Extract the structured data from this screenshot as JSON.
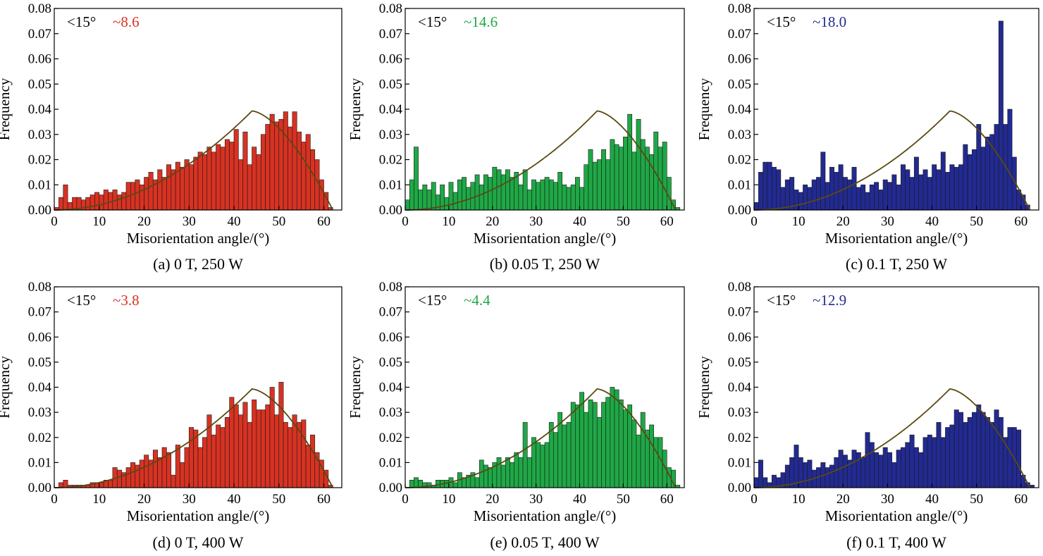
{
  "colors": {
    "red": "#d83222",
    "green": "#1fa846",
    "blue": "#222a92",
    "curve": "#5a4a10"
  },
  "chart_data": [
    {
      "type": "bar",
      "panel": "a",
      "caption": "(a) 0 T, 250 W",
      "xlabel": "Misorientation angle/(°)",
      "ylabel": "Frequency",
      "xlim": [
        0,
        64
      ],
      "ylim": [
        0,
        0.08
      ],
      "xticks": [
        "0",
        "10",
        "20",
        "30",
        "40",
        "50",
        "60"
      ],
      "yticks": [
        "0.00",
        "0.01",
        "0.02",
        "0.03",
        "0.04",
        "0.05",
        "0.06",
        "0.07",
        "0.08"
      ],
      "annotation_label": "<15°",
      "annotation_value": "~8.6",
      "color": "red",
      "series": [
        {
          "bin_width": 1,
          "x": [
            0,
            1,
            2,
            3,
            4,
            5,
            6,
            7,
            8,
            9,
            10,
            11,
            12,
            13,
            14,
            15,
            16,
            17,
            18,
            19,
            20,
            21,
            22,
            23,
            24,
            25,
            26,
            27,
            28,
            29,
            30,
            31,
            32,
            33,
            34,
            35,
            36,
            37,
            38,
            39,
            40,
            41,
            42,
            43,
            44,
            45,
            46,
            47,
            48,
            49,
            50,
            51,
            52,
            53,
            54,
            55,
            56,
            57,
            58,
            59,
            60,
            61,
            62
          ],
          "values": [
            0.001,
            0.005,
            0.01,
            0.003,
            0.005,
            0.005,
            0.004,
            0.005,
            0.006,
            0.007,
            0.006,
            0.008,
            0.007,
            0.008,
            0.006,
            0.007,
            0.011,
            0.011,
            0.012,
            0.01,
            0.013,
            0.015,
            0.012,
            0.016,
            0.013,
            0.018,
            0.016,
            0.019,
            0.017,
            0.02,
            0.018,
            0.021,
            0.023,
            0.022,
            0.025,
            0.023,
            0.026,
            0.025,
            0.028,
            0.027,
            0.032,
            0.02,
            0.031,
            0.018,
            0.025,
            0.022,
            0.03,
            0.034,
            0.038,
            0.035,
            0.036,
            0.039,
            0.033,
            0.039,
            0.031,
            0.027,
            0.03,
            0.024,
            0.02,
            0.012,
            0.007,
            0.001,
            0
          ]
        }
      ]
    },
    {
      "type": "bar",
      "panel": "b",
      "caption": "(b) 0.05 T, 250 W",
      "xlabel": "Misorientation angle/(°)",
      "ylabel": "Frequency",
      "xlim": [
        0,
        64
      ],
      "ylim": [
        0,
        0.08
      ],
      "xticks": [
        "0",
        "10",
        "20",
        "30",
        "40",
        "50",
        "60"
      ],
      "yticks": [
        "0.00",
        "0.01",
        "0.02",
        "0.03",
        "0.04",
        "0.05",
        "0.06",
        "0.07",
        "0.08"
      ],
      "annotation_label": "<15°",
      "annotation_value": "~14.6",
      "color": "green",
      "series": [
        {
          "bin_width": 1,
          "x": [
            0,
            1,
            2,
            3,
            4,
            5,
            6,
            7,
            8,
            9,
            10,
            11,
            12,
            13,
            14,
            15,
            16,
            17,
            18,
            19,
            20,
            21,
            22,
            23,
            24,
            25,
            26,
            27,
            28,
            29,
            30,
            31,
            32,
            33,
            34,
            35,
            36,
            37,
            38,
            39,
            40,
            41,
            42,
            43,
            44,
            45,
            46,
            47,
            48,
            49,
            50,
            51,
            52,
            53,
            54,
            55,
            56,
            57,
            58,
            59,
            60,
            61,
            62
          ],
          "values": [
            0.004,
            0.012,
            0.025,
            0.008,
            0.01,
            0.008,
            0.011,
            0.006,
            0.01,
            0.005,
            0.011,
            0.007,
            0.012,
            0.013,
            0.009,
            0.011,
            0.014,
            0.01,
            0.014,
            0.013,
            0.017,
            0.016,
            0.014,
            0.016,
            0.013,
            0.015,
            0.01,
            0.016,
            0.008,
            0.012,
            0.011,
            0.012,
            0.013,
            0.012,
            0.011,
            0.015,
            0.01,
            0.009,
            0.01,
            0.013,
            0.009,
            0.018,
            0.024,
            0.019,
            0.02,
            0.024,
            0.02,
            0.028,
            0.026,
            0.025,
            0.029,
            0.038,
            0.023,
            0.036,
            0.028,
            0.025,
            0.022,
            0.031,
            0.025,
            0.027,
            0.013,
            0.004,
            0.001
          ]
        }
      ]
    },
    {
      "type": "bar",
      "panel": "c",
      "caption": "(c) 0.1 T, 250 W",
      "xlabel": "Misorientation angle/(°)",
      "ylabel": "Frequency",
      "xlim": [
        0,
        64
      ],
      "ylim": [
        0,
        0.08
      ],
      "xticks": [
        "0",
        "10",
        "20",
        "30",
        "40",
        "50",
        "60"
      ],
      "yticks": [
        "0.00",
        "0.01",
        "0.02",
        "0.03",
        "0.04",
        "0.05",
        "0.06",
        "0.07",
        "0.08"
      ],
      "annotation_label": "<15°",
      "annotation_value": "~18.0",
      "color": "blue",
      "series": [
        {
          "bin_width": 1,
          "x": [
            0,
            1,
            2,
            3,
            4,
            5,
            6,
            7,
            8,
            9,
            10,
            11,
            12,
            13,
            14,
            15,
            16,
            17,
            18,
            19,
            20,
            21,
            22,
            23,
            24,
            25,
            26,
            27,
            28,
            29,
            30,
            31,
            32,
            33,
            34,
            35,
            36,
            37,
            38,
            39,
            40,
            41,
            42,
            43,
            44,
            45,
            46,
            47,
            48,
            49,
            50,
            51,
            52,
            53,
            54,
            55,
            56,
            57,
            58,
            59,
            60,
            61,
            62
          ],
          "values": [
            0.003,
            0.015,
            0.019,
            0.019,
            0.017,
            0.016,
            0.009,
            0.012,
            0.013,
            0.008,
            0.007,
            0.01,
            0.009,
            0.012,
            0.013,
            0.023,
            0.011,
            0.017,
            0.015,
            0.018,
            0.013,
            0.012,
            0.017,
            0.009,
            0.01,
            0.007,
            0.01,
            0.011,
            0.008,
            0.012,
            0.011,
            0.014,
            0.01,
            0.018,
            0.016,
            0.013,
            0.021,
            0.014,
            0.016,
            0.013,
            0.018,
            0.016,
            0.023,
            0.015,
            0.018,
            0.017,
            0.018,
            0.026,
            0.022,
            0.024,
            0.034,
            0.025,
            0.029,
            0.03,
            0.034,
            0.075,
            0.034,
            0.04,
            0.021,
            0.008,
            0.006,
            0.002,
            0
          ]
        }
      ]
    },
    {
      "type": "bar",
      "panel": "d",
      "caption": "(d) 0 T, 400 W",
      "xlabel": "Misorientation angle/(°)",
      "ylabel": "Frequency",
      "xlim": [
        0,
        64
      ],
      "ylim": [
        0,
        0.08
      ],
      "xticks": [
        "0",
        "10",
        "20",
        "30",
        "40",
        "50",
        "60"
      ],
      "yticks": [
        "0.00",
        "0.01",
        "0.02",
        "0.03",
        "0.04",
        "0.05",
        "0.06",
        "0.07",
        "0.08"
      ],
      "annotation_label": "<15°",
      "annotation_value": "~3.8",
      "color": "red",
      "series": [
        {
          "bin_width": 1,
          "x": [
            0,
            1,
            2,
            3,
            4,
            5,
            6,
            7,
            8,
            9,
            10,
            11,
            12,
            13,
            14,
            15,
            16,
            17,
            18,
            19,
            20,
            21,
            22,
            23,
            24,
            25,
            26,
            27,
            28,
            29,
            30,
            31,
            32,
            33,
            34,
            35,
            36,
            37,
            38,
            39,
            40,
            41,
            42,
            43,
            44,
            45,
            46,
            47,
            48,
            49,
            50,
            51,
            52,
            53,
            54,
            55,
            56,
            57,
            58,
            59,
            60,
            61,
            62
          ],
          "values": [
            0,
            0.002,
            0.003,
            0.001,
            0.001,
            0.001,
            0.001,
            0.001,
            0.002,
            0.002,
            0.002,
            0.003,
            0.003,
            0.008,
            0.007,
            0.006,
            0.008,
            0.01,
            0.009,
            0.011,
            0.013,
            0.011,
            0.015,
            0.012,
            0.016,
            0.014,
            0.005,
            0.017,
            0.01,
            0.016,
            0.024,
            0.023,
            0.016,
            0.02,
            0.029,
            0.021,
            0.025,
            0.024,
            0.028,
            0.036,
            0.033,
            0.029,
            0.034,
            0.026,
            0.035,
            0.031,
            0.031,
            0.033,
            0.04,
            0.029,
            0.042,
            0.026,
            0.024,
            0.029,
            0.026,
            0.027,
            0.017,
            0.021,
            0.014,
            0.011,
            0.007,
            0.001,
            0
          ]
        }
      ]
    },
    {
      "type": "bar",
      "panel": "e",
      "caption": "(e) 0.05 T, 400 W",
      "xlabel": "Misorientation angle/(°)",
      "ylabel": "Frequency",
      "xlim": [
        0,
        64
      ],
      "ylim": [
        0,
        0.08
      ],
      "xticks": [
        "0",
        "10",
        "20",
        "30",
        "40",
        "50",
        "60"
      ],
      "yticks": [
        "0.00",
        "0.01",
        "0.02",
        "0.03",
        "0.04",
        "0.05",
        "0.06",
        "0.07",
        "0.08"
      ],
      "annotation_label": "<15°",
      "annotation_value": "~4.4",
      "color": "green",
      "series": [
        {
          "bin_width": 1,
          "x": [
            0,
            1,
            2,
            3,
            4,
            5,
            6,
            7,
            8,
            9,
            10,
            11,
            12,
            13,
            14,
            15,
            16,
            17,
            18,
            19,
            20,
            21,
            22,
            23,
            24,
            25,
            26,
            27,
            28,
            29,
            30,
            31,
            32,
            33,
            34,
            35,
            36,
            37,
            38,
            39,
            40,
            41,
            42,
            43,
            44,
            45,
            46,
            47,
            48,
            49,
            50,
            51,
            52,
            53,
            54,
            55,
            56,
            57,
            58,
            59,
            60,
            61,
            62
          ],
          "values": [
            0,
            0.003,
            0.004,
            0.003,
            0.002,
            0.002,
            0.001,
            0.003,
            0.003,
            0.003,
            0.004,
            0.002,
            0.006,
            0.004,
            0.005,
            0.006,
            0.004,
            0.011,
            0.009,
            0.008,
            0.01,
            0.012,
            0.009,
            0.012,
            0.01,
            0.014,
            0.012,
            0.026,
            0.012,
            0.02,
            0.018,
            0.017,
            0.018,
            0.026,
            0.022,
            0.03,
            0.025,
            0.026,
            0.034,
            0.033,
            0.038,
            0.03,
            0.035,
            0.034,
            0.028,
            0.034,
            0.036,
            0.04,
            0.039,
            0.035,
            0.031,
            0.033,
            0.027,
            0.021,
            0.03,
            0.023,
            0.025,
            0.02,
            0.02,
            0.015,
            0.008,
            0.007,
            0.001
          ]
        }
      ]
    },
    {
      "type": "bar",
      "panel": "f",
      "caption": "(f) 0.1 T, 400 W",
      "xlabel": "Misorientation angle/(°)",
      "ylabel": "Frequency",
      "xlim": [
        0,
        64
      ],
      "ylim": [
        0,
        0.08
      ],
      "xticks": [
        "0",
        "10",
        "20",
        "30",
        "40",
        "50",
        "60"
      ],
      "yticks": [
        "0.00",
        "0.01",
        "0.02",
        "0.03",
        "0.04",
        "0.05",
        "0.06",
        "0.07",
        "0.08"
      ],
      "annotation_label": "<15°",
      "annotation_value": "~12.9",
      "color": "blue",
      "series": [
        {
          "bin_width": 1,
          "x": [
            0,
            1,
            2,
            3,
            4,
            5,
            6,
            7,
            8,
            9,
            10,
            11,
            12,
            13,
            14,
            15,
            16,
            17,
            18,
            19,
            20,
            21,
            22,
            23,
            24,
            25,
            26,
            27,
            28,
            29,
            30,
            31,
            32,
            33,
            34,
            35,
            36,
            37,
            38,
            39,
            40,
            41,
            42,
            43,
            44,
            45,
            46,
            47,
            48,
            49,
            50,
            51,
            52,
            53,
            54,
            55,
            56,
            57,
            58,
            59,
            60,
            61,
            62
          ],
          "values": [
            0.004,
            0.011,
            0.004,
            0.002,
            0.005,
            0.004,
            0.006,
            0.009,
            0.012,
            0.017,
            0.012,
            0.01,
            0.011,
            0.007,
            0.008,
            0.01,
            0.008,
            0.009,
            0.012,
            0.015,
            0.013,
            0.011,
            0.015,
            0.014,
            0.012,
            0.022,
            0.018,
            0.014,
            0.013,
            0.016,
            0.014,
            0.01,
            0.015,
            0.016,
            0.018,
            0.021,
            0.016,
            0.014,
            0.02,
            0.021,
            0.02,
            0.026,
            0.02,
            0.024,
            0.025,
            0.031,
            0.03,
            0.026,
            0.028,
            0.03,
            0.033,
            0.03,
            0.028,
            0.026,
            0.031,
            0.028,
            0.02,
            0.024,
            0.024,
            0.023,
            0.005,
            0.002,
            0.001
          ]
        }
      ]
    }
  ]
}
